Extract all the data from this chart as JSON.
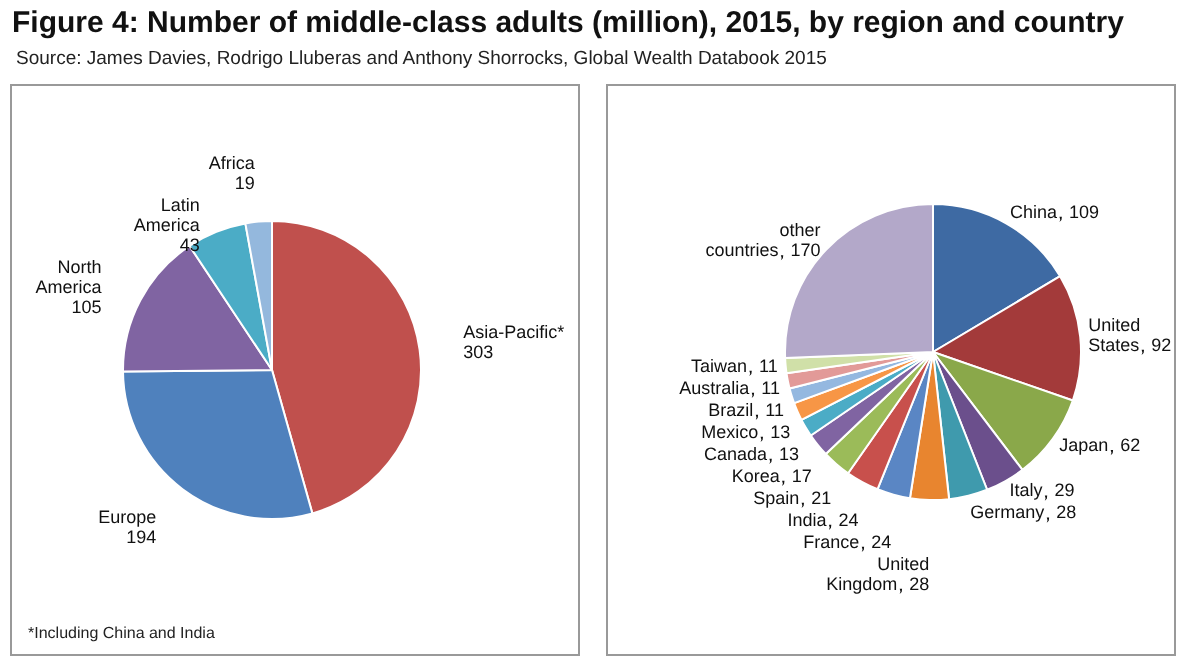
{
  "chart_data": [
    {
      "type": "pie",
      "title": "Figure 4: Number of middle-class adults (million), 2015, by region and country",
      "subtitle": "Source: James Davies, Rodrigo Lluberas and Anthony Shorrocks, Global Wealth Databook 2015",
      "categories": [
        "Asia-Pacific*",
        "Europe",
        "North America",
        "Latin America",
        "Africa"
      ],
      "values": [
        303,
        194,
        105,
        43,
        19
      ],
      "colors": [
        "#c0504d",
        "#4f81bd",
        "#8064a2",
        "#4bacc6",
        "#94b8dd"
      ],
      "data_labels": true,
      "legend": false,
      "annotations": [
        "*Including China and India"
      ]
    },
    {
      "type": "pie",
      "categories": [
        "China",
        "United States",
        "Japan",
        "Italy",
        "Germany",
        "United Kingdom",
        "France",
        "India",
        "Spain",
        "Korea",
        "Canada",
        "Mexico",
        "Brazil",
        "Australia",
        "Taiwan",
        "other countries"
      ],
      "values": [
        109,
        92,
        62,
        29,
        28,
        28,
        24,
        24,
        21,
        17,
        13,
        13,
        11,
        11,
        11,
        170
      ],
      "colors": [
        "#3e6aa3",
        "#a33a3a",
        "#8aa84a",
        "#6b4f8c",
        "#3f9aad",
        "#e8852f",
        "#5a86c4",
        "#c8504c",
        "#9bbb59",
        "#8064a2",
        "#4bacc6",
        "#f79646",
        "#94b8e0",
        "#e29a98",
        "#d0e0a8",
        "#b3a8c9"
      ],
      "data_labels": true,
      "legend": false
    }
  ]
}
